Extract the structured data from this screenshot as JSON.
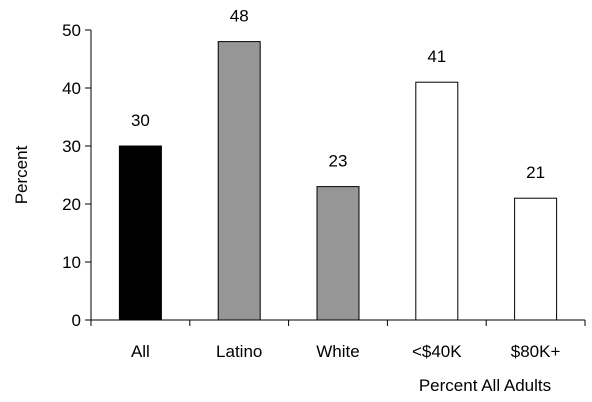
{
  "chart_data": {
    "type": "bar",
    "categories": [
      "All",
      "Latino",
      "White",
      "<$40K",
      "$80K+"
    ],
    "values": [
      30,
      48,
      23,
      41,
      21
    ],
    "bar_colors": [
      "#000000",
      "#969696",
      "#969696",
      "#ffffff",
      "#ffffff"
    ],
    "data_labels": [
      "30",
      "48",
      "23",
      "41",
      "21"
    ],
    "ylabel": "Percent",
    "xlabel": "Percent All Adults",
    "ylim": [
      0,
      50
    ],
    "yticks": [
      0,
      10,
      20,
      30,
      40,
      50
    ],
    "ytick_labels": [
      "0",
      "10",
      "20",
      "30",
      "40",
      "50"
    ],
    "grid": false,
    "legend": "none"
  }
}
